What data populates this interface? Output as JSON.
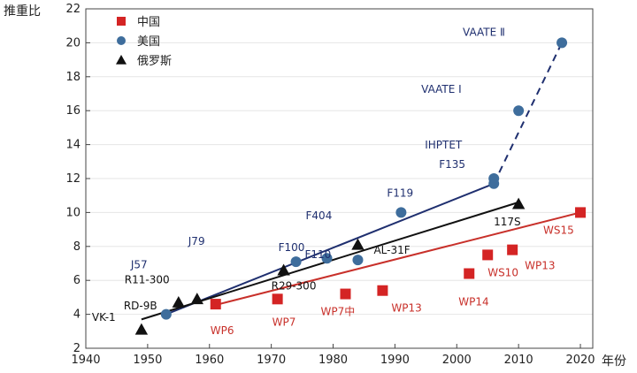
{
  "chart_data": {
    "type": "scatter",
    "ylabel": "推重比",
    "xlabel": "年份",
    "xlim": [
      1940,
      2022
    ],
    "ylim": [
      2,
      22
    ],
    "xticks": [
      1940,
      1950,
      1960,
      1970,
      1980,
      1990,
      2000,
      2010,
      2020
    ],
    "yticks": [
      2,
      4,
      6,
      8,
      10,
      12,
      14,
      16,
      18,
      20,
      22
    ],
    "legend_position": "top-left",
    "series": [
      {
        "name": "中国",
        "marker": "square",
        "color": "#d42424",
        "points": [
          {
            "x": 1961,
            "y": 4.6,
            "label": "WP6"
          },
          {
            "x": 1971,
            "y": 4.9,
            "label": "WP7"
          },
          {
            "x": 1982,
            "y": 5.2,
            "label": "WP7中"
          },
          {
            "x": 1988,
            "y": 5.4,
            "label": "WP13"
          },
          {
            "x": 2002,
            "y": 6.4,
            "label": "WP14"
          },
          {
            "x": 2005,
            "y": 7.5,
            "label": "WS10"
          },
          {
            "x": 2009,
            "y": 7.8,
            "label": "WP13"
          },
          {
            "x": 2020,
            "y": 10.0,
            "label": "WS15"
          }
        ]
      },
      {
        "name": "美国",
        "marker": "circle",
        "color": "#3e6d9c",
        "points": [
          {
            "x": 1953,
            "y": 4.0,
            "label": "J57"
          },
          {
            "x": 1974,
            "y": 7.1,
            "label": "F100"
          },
          {
            "x": 1979,
            "y": 7.3,
            "label": "F404"
          },
          {
            "x": 1984,
            "y": 7.2,
            "label": "F110"
          },
          {
            "x": 1991,
            "y": 10.0,
            "label": "F119"
          },
          {
            "x": 2006,
            "y": 11.7,
            "label": "F135"
          },
          {
            "x": 2006,
            "y": 12.0,
            "label": "IHPTET"
          },
          {
            "x": 2010,
            "y": 16.0,
            "label": "VAATE Ⅰ"
          },
          {
            "x": 2017,
            "y": 20.0,
            "label": "VAATE Ⅱ"
          }
        ]
      },
      {
        "name": "俄罗斯",
        "marker": "triangle",
        "color": "#111111",
        "points": [
          {
            "x": 1949,
            "y": 3.1,
            "label": "VK-1"
          },
          {
            "x": 1955,
            "y": 4.7,
            "label": "RD-9B"
          },
          {
            "x": 1958,
            "y": 4.9,
            "label": "R11-300"
          },
          {
            "x": 1972,
            "y": 6.6,
            "label": "R29-300"
          },
          {
            "x": 1984,
            "y": 8.1,
            "label": "AL-31F"
          },
          {
            "x": 2010,
            "y": 10.5,
            "label": "117S"
          }
        ]
      }
    ],
    "extra_labels": [
      {
        "text": "J79",
        "x": 1958,
        "y": 8.3
      }
    ],
    "trend_lines": [
      {
        "series": "中国",
        "points": [
          [
            1961,
            4.55
          ],
          [
            2020,
            10.0
          ]
        ],
        "style": "solid"
      },
      {
        "series": "美国",
        "points": [
          [
            1953,
            4.0
          ],
          [
            2006,
            11.7
          ]
        ],
        "style": "solid"
      },
      {
        "series": "美国",
        "points": [
          [
            2006,
            11.7
          ],
          [
            2017,
            20.0
          ]
        ],
        "style": "dashed"
      },
      {
        "series": "俄罗斯",
        "points": [
          [
            1949,
            3.7
          ],
          [
            2010,
            10.6
          ]
        ],
        "style": "solid"
      }
    ]
  }
}
